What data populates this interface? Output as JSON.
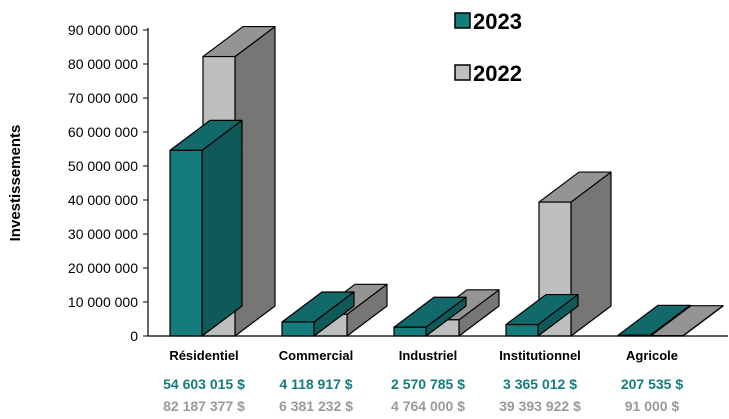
{
  "chart_data": {
    "type": "bar",
    "ylabel": "Investissements",
    "ylim": [
      0,
      90000000
    ],
    "yticks": [
      "0",
      "10 000 000",
      "20 000 000",
      "30 000 000",
      "40 000 000",
      "50 000 000",
      "60 000 000",
      "70 000 000",
      "80 000 000",
      "90 000 000"
    ],
    "categories": [
      "Résidentiel",
      "Commercial",
      "Industriel",
      "Institutionnel",
      "Agricole"
    ],
    "series": [
      {
        "name": "2023",
        "values": [
          54603015,
          4118917,
          2570785,
          3365012,
          207535
        ],
        "labels": [
          "54 603 015 $",
          "4 118 917 $",
          "2 570 785 $",
          "3 365 012 $",
          "207 535 $"
        ],
        "color": "#157C7C"
      },
      {
        "name": "2022",
        "values": [
          82187377,
          6381232,
          4764000,
          39393922,
          91000
        ],
        "labels": [
          "82 187 377 $",
          "6 381 232 $",
          "4 764 000 $",
          "39 393 922 $",
          "91 000 $"
        ],
        "color": "#BEBEBE"
      }
    ],
    "legend_position": "top-right",
    "style": "3d-column"
  }
}
